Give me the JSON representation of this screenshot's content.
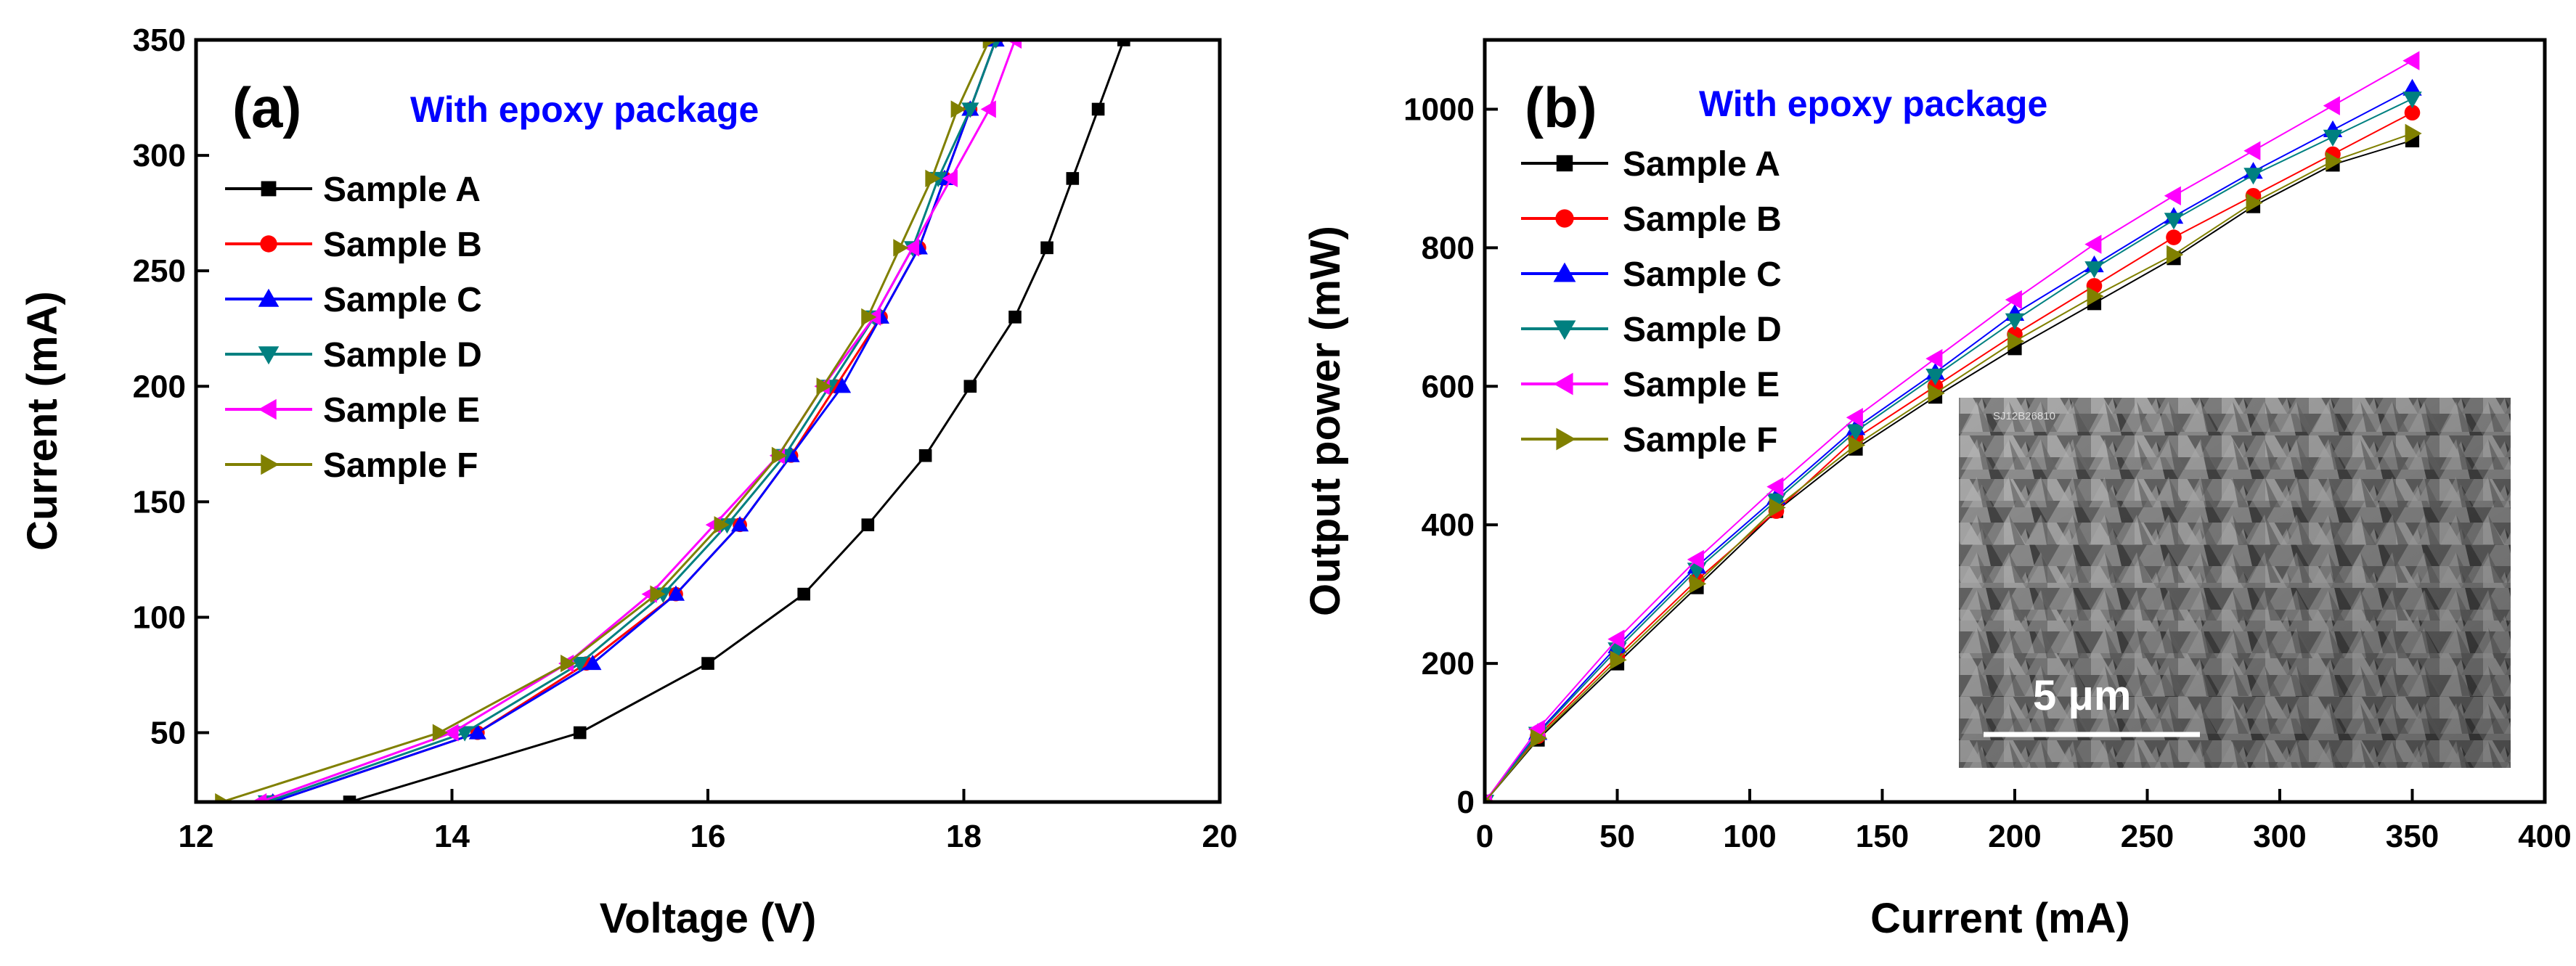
{
  "colors": {
    "Sample A": "#000000",
    "Sample B": "#ff0000",
    "Sample C": "#0000ff",
    "Sample D": "#008080",
    "Sample E": "#ff00ff",
    "Sample F": "#808000",
    "annotation": "#0000ff"
  },
  "markers": {
    "Sample A": "square",
    "Sample B": "circle",
    "Sample C": "triangle-up",
    "Sample D": "triangle-down",
    "Sample E": "triangle-left",
    "Sample F": "triangle-right"
  },
  "chart_data": [
    {
      "type": "line",
      "panel_label": "(a)",
      "annotation": "With epoxy package",
      "xlabel": "Voltage (V)",
      "ylabel": "Current (mA)",
      "xlim": [
        12,
        20
      ],
      "ylim": [
        20,
        350
      ],
      "xticks": [
        12,
        14,
        16,
        18,
        20
      ],
      "yticks": [
        50,
        100,
        150,
        200,
        250,
        300,
        350
      ],
      "legend_position": "upper-left",
      "series": [
        {
          "name": "Sample A",
          "x": [
            13.2,
            15.0,
            16.0,
            16.75,
            17.25,
            17.7,
            18.05,
            18.4,
            18.65,
            18.85,
            19.05,
            19.25
          ],
          "y": [
            20,
            50,
            80,
            110,
            140,
            170,
            200,
            230,
            260,
            290,
            320,
            350
          ]
        },
        {
          "name": "Sample B",
          "x": [
            12.6,
            14.2,
            15.05,
            15.75,
            16.25,
            16.65,
            17.0,
            17.35,
            17.65,
            17.85,
            18.05,
            18.25
          ],
          "y": [
            20,
            50,
            80,
            110,
            140,
            170,
            200,
            230,
            260,
            290,
            320,
            350
          ]
        },
        {
          "name": "Sample C",
          "x": [
            12.6,
            14.2,
            15.1,
            15.75,
            16.25,
            16.65,
            17.05,
            17.35,
            17.65,
            17.85,
            18.05,
            18.25
          ],
          "y": [
            20,
            50,
            80,
            110,
            140,
            170,
            200,
            230,
            260,
            290,
            320,
            350
          ]
        },
        {
          "name": "Sample D",
          "x": [
            12.55,
            14.1,
            15.0,
            15.65,
            16.15,
            16.6,
            16.95,
            17.3,
            17.6,
            17.8,
            18.05,
            18.25
          ],
          "y": [
            20,
            50,
            80,
            110,
            140,
            170,
            200,
            230,
            260,
            290,
            320,
            350
          ]
        },
        {
          "name": "Sample E",
          "x": [
            12.5,
            14.0,
            14.9,
            15.55,
            16.05,
            16.55,
            16.9,
            17.3,
            17.6,
            17.9,
            18.2,
            18.4
          ],
          "y": [
            20,
            50,
            80,
            110,
            140,
            170,
            200,
            230,
            260,
            290,
            320,
            350
          ]
        },
        {
          "name": "Sample F",
          "x": [
            12.2,
            13.9,
            14.9,
            15.6,
            16.1,
            16.55,
            16.9,
            17.25,
            17.5,
            17.75,
            17.95,
            18.2
          ],
          "y": [
            20,
            50,
            80,
            110,
            140,
            170,
            200,
            230,
            260,
            290,
            320,
            350
          ]
        }
      ]
    },
    {
      "type": "line",
      "panel_label": "(b)",
      "annotation": "With epoxy package",
      "xlabel": "Current (mA)",
      "ylabel": "Output power (mW)",
      "xlim": [
        0,
        400
      ],
      "ylim": [
        0,
        1100
      ],
      "xticks": [
        0,
        50,
        100,
        150,
        200,
        250,
        300,
        350,
        400
      ],
      "yticks": [
        0,
        200,
        400,
        600,
        800,
        1000
      ],
      "legend_position": "upper-left",
      "inset": {
        "description": "SEM micrograph",
        "scale_bar_label": "5 μm"
      },
      "series": [
        {
          "name": "Sample A",
          "x": [
            0,
            20,
            50,
            80,
            110,
            140,
            170,
            200,
            230,
            260,
            290,
            320,
            350
          ],
          "y": [
            0,
            90,
            200,
            310,
            420,
            510,
            585,
            655,
            720,
            785,
            860,
            920,
            955
          ]
        },
        {
          "name": "Sample B",
          "x": [
            0,
            20,
            50,
            80,
            110,
            140,
            170,
            200,
            230,
            260,
            290,
            320,
            350
          ],
          "y": [
            0,
            95,
            210,
            320,
            420,
            525,
            600,
            675,
            745,
            815,
            875,
            935,
            995
          ]
        },
        {
          "name": "Sample C",
          "x": [
            0,
            20,
            50,
            80,
            110,
            140,
            170,
            200,
            230,
            260,
            290,
            320,
            350
          ],
          "y": [
            0,
            100,
            225,
            340,
            440,
            540,
            620,
            705,
            775,
            845,
            910,
            970,
            1030
          ]
        },
        {
          "name": "Sample D",
          "x": [
            0,
            20,
            50,
            80,
            110,
            140,
            170,
            200,
            230,
            260,
            290,
            320,
            350
          ],
          "y": [
            0,
            98,
            220,
            335,
            435,
            535,
            615,
            695,
            770,
            840,
            905,
            960,
            1015
          ]
        },
        {
          "name": "Sample E",
          "x": [
            0,
            20,
            50,
            80,
            110,
            140,
            170,
            200,
            230,
            260,
            290,
            320,
            350
          ],
          "y": [
            0,
            105,
            235,
            350,
            455,
            555,
            640,
            725,
            805,
            875,
            940,
            1005,
            1070
          ]
        },
        {
          "name": "Sample F",
          "x": [
            0,
            20,
            50,
            80,
            110,
            140,
            170,
            200,
            230,
            260,
            290,
            320,
            350
          ],
          "y": [
            0,
            92,
            205,
            315,
            425,
            515,
            590,
            665,
            730,
            790,
            865,
            925,
            965
          ]
        }
      ]
    }
  ]
}
